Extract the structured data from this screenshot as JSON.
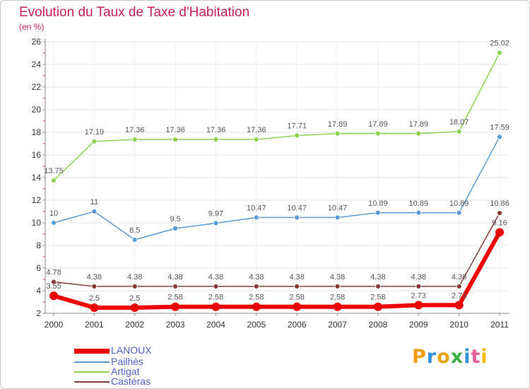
{
  "title": "Evolution du Taux de Taxe d'Habitation",
  "subtitle": "(en %)",
  "logo": {
    "text": "Proxiti",
    "letters": [
      {
        "ch": "P",
        "color": "#f39c12"
      },
      {
        "ch": "r",
        "color": "#2f8fd8"
      },
      {
        "ch": "o",
        "color": "#e8a317"
      },
      {
        "ch": "x",
        "color": "#3bb143"
      },
      {
        "ch": "i",
        "color": "#2f8fd8"
      },
      {
        "ch": "t",
        "color": "#e85d9a"
      },
      {
        "ch": "i",
        "color": "#f5b800"
      }
    ]
  },
  "chart_data": {
    "type": "line",
    "title": "Evolution du Taux de Taxe d'Habitation",
    "subtitle": "(en %)",
    "xlabel": "",
    "ylabel": "",
    "x": [
      "2000",
      "2001",
      "2002",
      "2003",
      "2004",
      "2005",
      "2006",
      "2007",
      "2008",
      "2009",
      "2010",
      "2011"
    ],
    "ylim": [
      2,
      26
    ],
    "yticks": [
      2,
      4,
      6,
      8,
      10,
      12,
      14,
      16,
      18,
      20,
      22,
      24,
      26
    ],
    "grid": true,
    "legend_position": "bottom-left",
    "series": [
      {
        "name": "LANOUX",
        "color": "#ee0000",
        "width": 6,
        "point": 6,
        "values": [
          3.55,
          2.5,
          2.5,
          2.58,
          2.58,
          2.58,
          2.58,
          2.58,
          2.58,
          2.73,
          2.73,
          9.16
        ],
        "labels": [
          "3.55",
          "2.5",
          "2.5",
          "2.58",
          "2.58",
          "2.58",
          "2.58",
          "2.58",
          "2.58",
          "2.73",
          "2.73",
          "9.16"
        ]
      },
      {
        "name": "Pailhès",
        "color": "#5b9bd5",
        "width": 1.5,
        "point": 3.5,
        "values": [
          10,
          11,
          8.5,
          9.5,
          9.97,
          10.47,
          10.47,
          10.47,
          10.89,
          10.89,
          10.89,
          17.59
        ],
        "labels": [
          "10",
          "11",
          "8.5",
          "9.5",
          "9.97",
          "10.47",
          "10.47",
          "10.47",
          "10.89",
          "10.89",
          "10.89",
          "17.59"
        ]
      },
      {
        "name": "Artigat",
        "color": "#8fd14f",
        "width": 1.5,
        "point": 3.5,
        "values": [
          13.75,
          17.19,
          17.36,
          17.36,
          17.36,
          17.36,
          17.71,
          17.89,
          17.89,
          17.89,
          18.07,
          25.02
        ],
        "labels": [
          "13.75",
          "17.19",
          "17.36",
          "17.36",
          "17.36",
          "17.36",
          "17.71",
          "17.89",
          "17.89",
          "17.89",
          "18.07",
          "25.02"
        ]
      },
      {
        "name": "Castéras",
        "color": "#8b3a3a",
        "width": 1.5,
        "point": 3.5,
        "values": [
          4.78,
          4.38,
          4.38,
          4.38,
          4.38,
          4.38,
          4.38,
          4.38,
          4.38,
          4.38,
          4.38,
          10.86
        ],
        "labels": [
          "4.78",
          "4.38",
          "4.38",
          "4.38",
          "4.38",
          "4.38",
          "4.38",
          "4.38",
          "4.38",
          "4.38",
          "4.38",
          "10.86"
        ]
      }
    ]
  }
}
